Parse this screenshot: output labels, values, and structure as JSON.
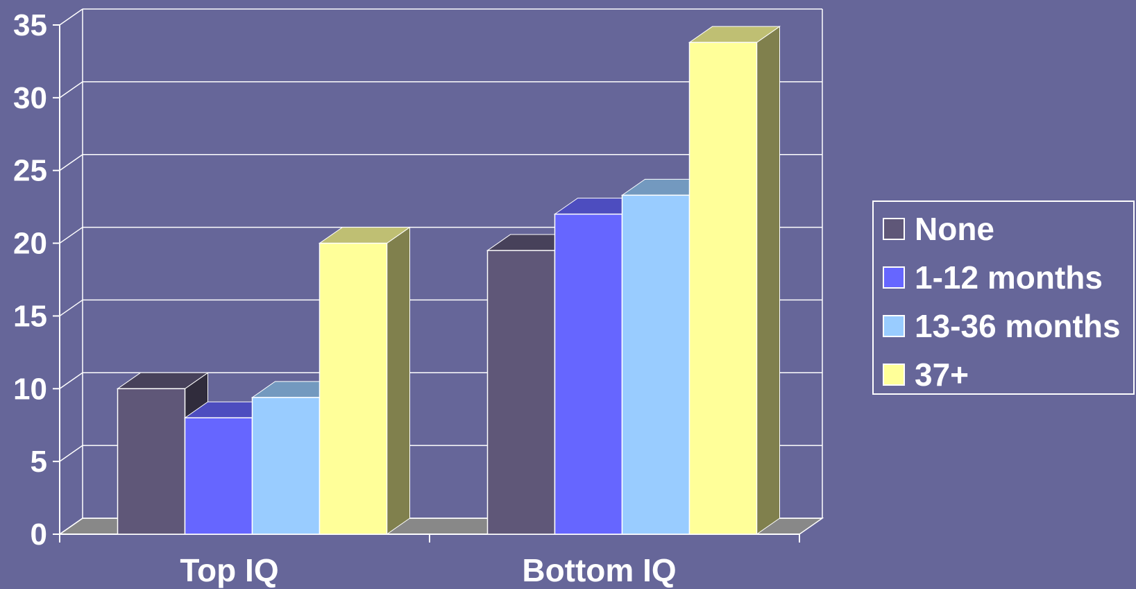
{
  "chart_data": {
    "type": "bar",
    "categories": [
      "Top IQ",
      "Bottom IQ"
    ],
    "series": [
      {
        "name": "None",
        "values": [
          10,
          19.5
        ],
        "color": "#5f5778"
      },
      {
        "name": "1-12 months",
        "values": [
          8,
          22
        ],
        "color": "#6666ff"
      },
      {
        "name": "13-36 months",
        "values": [
          9.4,
          23.3
        ],
        "color": "#99ccff"
      },
      {
        "name": "37+",
        "values": [
          20,
          33.8
        ],
        "color": "#ffff99"
      }
    ],
    "y_ticks": [
      "0",
      "5",
      "10",
      "15",
      "20",
      "25",
      "30",
      "35"
    ],
    "ylim": [
      0,
      35
    ],
    "grid": true,
    "legend_position": "right",
    "style": "3d-clustered-bar",
    "colors": {
      "background": "#666699",
      "grid": "#ffffff",
      "text": "#ffffff"
    }
  }
}
